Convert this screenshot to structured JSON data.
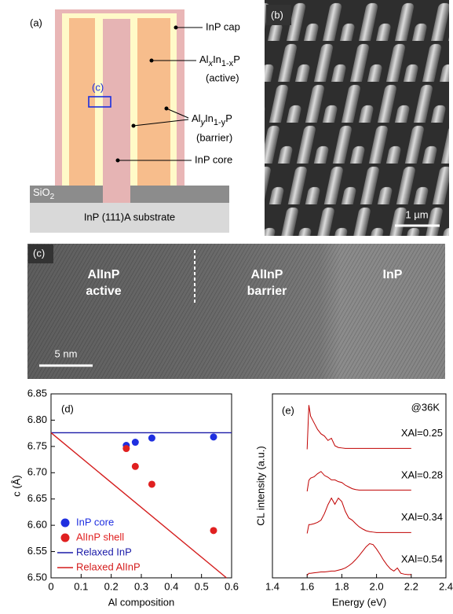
{
  "panel_a": {
    "label": "(a)",
    "cap": "InP cap",
    "active": [
      "Al",
      "x",
      "In",
      "1-x",
      "P"
    ],
    "active_note": "(active)",
    "barrier": [
      "Al",
      "y",
      "In",
      "1-y",
      "P"
    ],
    "barrier_note": "(barrier)",
    "core": "InP core",
    "oxide": [
      "SiO",
      "2"
    ],
    "substrate": "InP (111)A substrate",
    "region": "(c)"
  },
  "panel_b": {
    "label": "(b)",
    "scale_bar": "1 µm"
  },
  "panel_c": {
    "label": "(c)",
    "regions": [
      [
        "AlInP",
        "active"
      ],
      [
        "AlInP",
        "barrier"
      ],
      [
        "InP"
      ]
    ],
    "scale_bar": "5 nm"
  },
  "chart_data": [
    {
      "type": "scatter",
      "label": "(d)",
      "xlabel": "Al composition",
      "ylabel": "c (Å)",
      "xlim": [
        0,
        0.6
      ],
      "xticks": [
        0,
        0.1,
        0.2,
        0.3,
        0.4,
        0.5,
        0.6
      ],
      "ylim": [
        6.5,
        6.85
      ],
      "yticks": [
        {
          "value": 6.5,
          "label": "6.50"
        },
        6.55,
        {
          "value": 6.6,
          "label": "6.60"
        },
        6.65,
        {
          "value": 6.7,
          "label": "6.70"
        },
        6.75,
        {
          "value": 6.8,
          "label": "6.80"
        },
        6.85
      ],
      "series": [
        {
          "name": "InP core",
          "color": "#1f2fe0",
          "marker": "circle",
          "x": [
            0.25,
            0.28,
            0.335,
            0.54
          ],
          "values": [
            6.752,
            6.758,
            6.766,
            6.768
          ]
        },
        {
          "name": "AlInP shell",
          "color": "#e02020",
          "marker": "circle",
          "x": [
            0.25,
            0.28,
            0.335,
            0.54
          ],
          "values": [
            6.746,
            6.712,
            6.678,
            6.59
          ]
        },
        {
          "name": "Relaxed InP",
          "color": "#1a1aa8",
          "marker": "line",
          "x": [
            0,
            0.6
          ],
          "values": [
            6.776,
            6.776
          ]
        },
        {
          "name": "Relaxed AlInP",
          "color": "#d41c1c",
          "marker": "line",
          "x": [
            0,
            0.583
          ],
          "values": [
            6.776,
            6.5
          ]
        }
      ]
    },
    {
      "type": "line",
      "label": "(e)",
      "xlabel": "Energy (eV)",
      "ylabel": "CL intensity (a.u.)",
      "annotation": "@36K",
      "xlim": [
        1.4,
        2.4
      ],
      "xticks": [
        1.4,
        1.6,
        1.8,
        {
          "value": 2,
          "label": "2.0"
        },
        2.2,
        2.4
      ],
      "x": [
        1.6,
        1.61,
        1.62,
        1.64,
        1.66,
        1.68,
        1.7,
        1.72,
        1.74,
        1.76,
        1.78,
        1.8,
        1.82,
        1.84,
        1.86,
        1.88,
        1.9,
        1.92,
        1.94,
        1.96,
        1.98,
        2.0,
        2.02,
        2.04,
        2.06,
        2.08,
        2.1,
        2.12,
        2.14,
        2.16,
        2.18,
        2.2
      ],
      "series": [
        {
          "name": "XAl=0.25",
          "color": "#c00000",
          "values": [
            0,
            1.0,
            0.75,
            0.6,
            0.45,
            0.35,
            0.3,
            0.2,
            0.25,
            0.08,
            0.04,
            0.03,
            0.02,
            0.02,
            0.02,
            0.02,
            0.02,
            0.02,
            0.02,
            0.02,
            0.02,
            0.02,
            0.02,
            0.02,
            0.02,
            0.02,
            0.02,
            0.02,
            0.02,
            0.02,
            0.02,
            0.02
          ]
        },
        {
          "name": "XAl=0.28",
          "color": "#c00000",
          "values": [
            0,
            0.25,
            0.3,
            0.33,
            0.4,
            0.45,
            0.36,
            0.32,
            0.26,
            0.26,
            0.22,
            0.2,
            0.14,
            0.1,
            0.06,
            0.04,
            0.03,
            0.03,
            0.03,
            0.03,
            0.03,
            0.03,
            0.03,
            0.03,
            0.03,
            0.03,
            0.03,
            0.03,
            0.03,
            0.03,
            0.03,
            0.03
          ]
        },
        {
          "name": "XAl=0.34",
          "color": "#c00000",
          "values": [
            0,
            0.2,
            0.2,
            0.22,
            0.25,
            0.3,
            0.45,
            0.65,
            0.8,
            0.66,
            0.8,
            0.72,
            0.5,
            0.35,
            0.3,
            0.22,
            0.15,
            0.1,
            0.06,
            0.04,
            0.03,
            0.02,
            0.02,
            0.02,
            0.02,
            0.02,
            0.02,
            0.02,
            0.02,
            0.02,
            0.02,
            0.02
          ]
        },
        {
          "name": "XAl=0.54",
          "color": "#c00000",
          "values": [
            0,
            0.05,
            0.05,
            0.06,
            0.07,
            0.08,
            0.08,
            0.09,
            0.1,
            0.1,
            0.12,
            0.14,
            0.17,
            0.22,
            0.28,
            0.36,
            0.45,
            0.55,
            0.65,
            0.72,
            0.7,
            0.6,
            0.48,
            0.35,
            0.24,
            0.15,
            0.1,
            0.17,
            0.05,
            0.03,
            0.02,
            0.02
          ]
        }
      ]
    }
  ]
}
